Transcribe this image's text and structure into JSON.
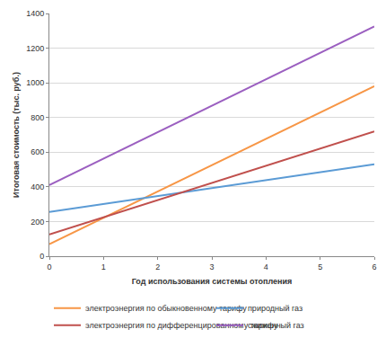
{
  "chart_data": {
    "type": "line",
    "x_label": "Год использования системы отопления",
    "y_label": "Итоговая стоимость (тыс. руб.)",
    "x": [
      0,
      6
    ],
    "series": [
      {
        "name": "электроэнергия по обыкновенному тарифу",
        "color": "#f79646",
        "values": [
          70,
          980
        ]
      },
      {
        "name": "природный газ",
        "color": "#5b9bd5",
        "values": [
          255,
          530
        ]
      },
      {
        "name": "электроэнергия по дифференцированному тарифу",
        "color": "#c0504d",
        "values": [
          125,
          720
        ]
      },
      {
        "name": "сжиженный газ",
        "color": "#9b5fc0",
        "values": [
          410,
          1325
        ]
      }
    ],
    "xlim": [
      0,
      6
    ],
    "xticks": [
      0,
      1,
      2,
      3,
      4,
      5,
      6
    ],
    "ylim": [
      0,
      1400
    ],
    "yticks": [
      0,
      200,
      400,
      600,
      800,
      1000,
      1200,
      1400
    ],
    "grid": true,
    "legend": "bottom"
  }
}
